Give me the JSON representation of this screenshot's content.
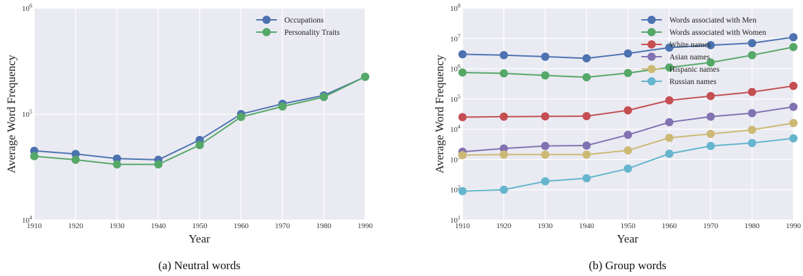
{
  "chart_data": [
    {
      "type": "line",
      "caption": "(a) Neutral words",
      "xlabel": "Year",
      "ylabel": "Average Word Frequency",
      "yscale": "log",
      "ylim": [
        10000,
        1000000
      ],
      "xlim": [
        1910,
        1990
      ],
      "yticks": [
        {
          "value": 10000,
          "base": "10",
          "exp": "4"
        },
        {
          "value": 100000,
          "base": "10",
          "exp": "5"
        },
        {
          "value": 1000000,
          "base": "10",
          "exp": "6"
        }
      ],
      "x": [
        1910,
        1920,
        1930,
        1940,
        1950,
        1960,
        1970,
        1980,
        1990
      ],
      "grid": true,
      "legend_position": "top-right",
      "series": [
        {
          "name": "Occupations",
          "color": "#4c72b0",
          "values": [
            45000,
            42000,
            38000,
            37000,
            57000,
            100000,
            125000,
            150000,
            225000
          ]
        },
        {
          "name": "Personality Traits",
          "color": "#55a868",
          "values": [
            40000,
            37000,
            33500,
            33500,
            51000,
            94000,
            118000,
            145000,
            225000
          ]
        }
      ]
    },
    {
      "type": "line",
      "caption": "(b) Group words",
      "xlabel": "Year",
      "ylabel": "Average Word Frequency",
      "yscale": "log",
      "ylim": [
        10,
        100000000
      ],
      "xlim": [
        1910,
        1990
      ],
      "yticks": [
        {
          "value": 10,
          "base": "10",
          "exp": "1"
        },
        {
          "value": 100,
          "base": "10",
          "exp": "2"
        },
        {
          "value": 1000,
          "base": "10",
          "exp": "3"
        },
        {
          "value": 10000,
          "base": "10",
          "exp": "4"
        },
        {
          "value": 100000,
          "base": "10",
          "exp": "5"
        },
        {
          "value": 1000000,
          "base": "10",
          "exp": "6"
        },
        {
          "value": 10000000,
          "base": "10",
          "exp": "7"
        },
        {
          "value": 100000000,
          "base": "10",
          "exp": "8"
        }
      ],
      "x": [
        1910,
        1920,
        1930,
        1940,
        1950,
        1960,
        1970,
        1980,
        1990
      ],
      "grid": true,
      "legend_position": "top-right",
      "series": [
        {
          "name": "Words associated with Men",
          "color": "#4c72b0",
          "values": [
            3000000,
            2800000,
            2500000,
            2200000,
            3200000,
            5000000,
            6000000,
            7000000,
            11000000
          ]
        },
        {
          "name": "Words associated with Women",
          "color": "#55a868",
          "values": [
            750000,
            700000,
            600000,
            520000,
            720000,
            1100000,
            1600000,
            2800000,
            5200000
          ]
        },
        {
          "name": "White names",
          "color": "#c44e52",
          "values": [
            25000,
            26000,
            26500,
            27000,
            42000,
            90000,
            125000,
            170000,
            270000
          ]
        },
        {
          "name": "Asian names",
          "color": "#8172b2",
          "values": [
            1800,
            2300,
            2800,
            2900,
            6500,
            17000,
            26000,
            34000,
            55000
          ]
        },
        {
          "name": "Hispanic names",
          "color": "#ccb974",
          "values": [
            1400,
            1450,
            1450,
            1450,
            2000,
            5200,
            7000,
            9500,
            16000
          ]
        },
        {
          "name": "Russian names",
          "color": "#64b5cd",
          "values": [
            90,
            100,
            190,
            240,
            500,
            1550,
            2800,
            3500,
            5000
          ]
        }
      ]
    }
  ]
}
